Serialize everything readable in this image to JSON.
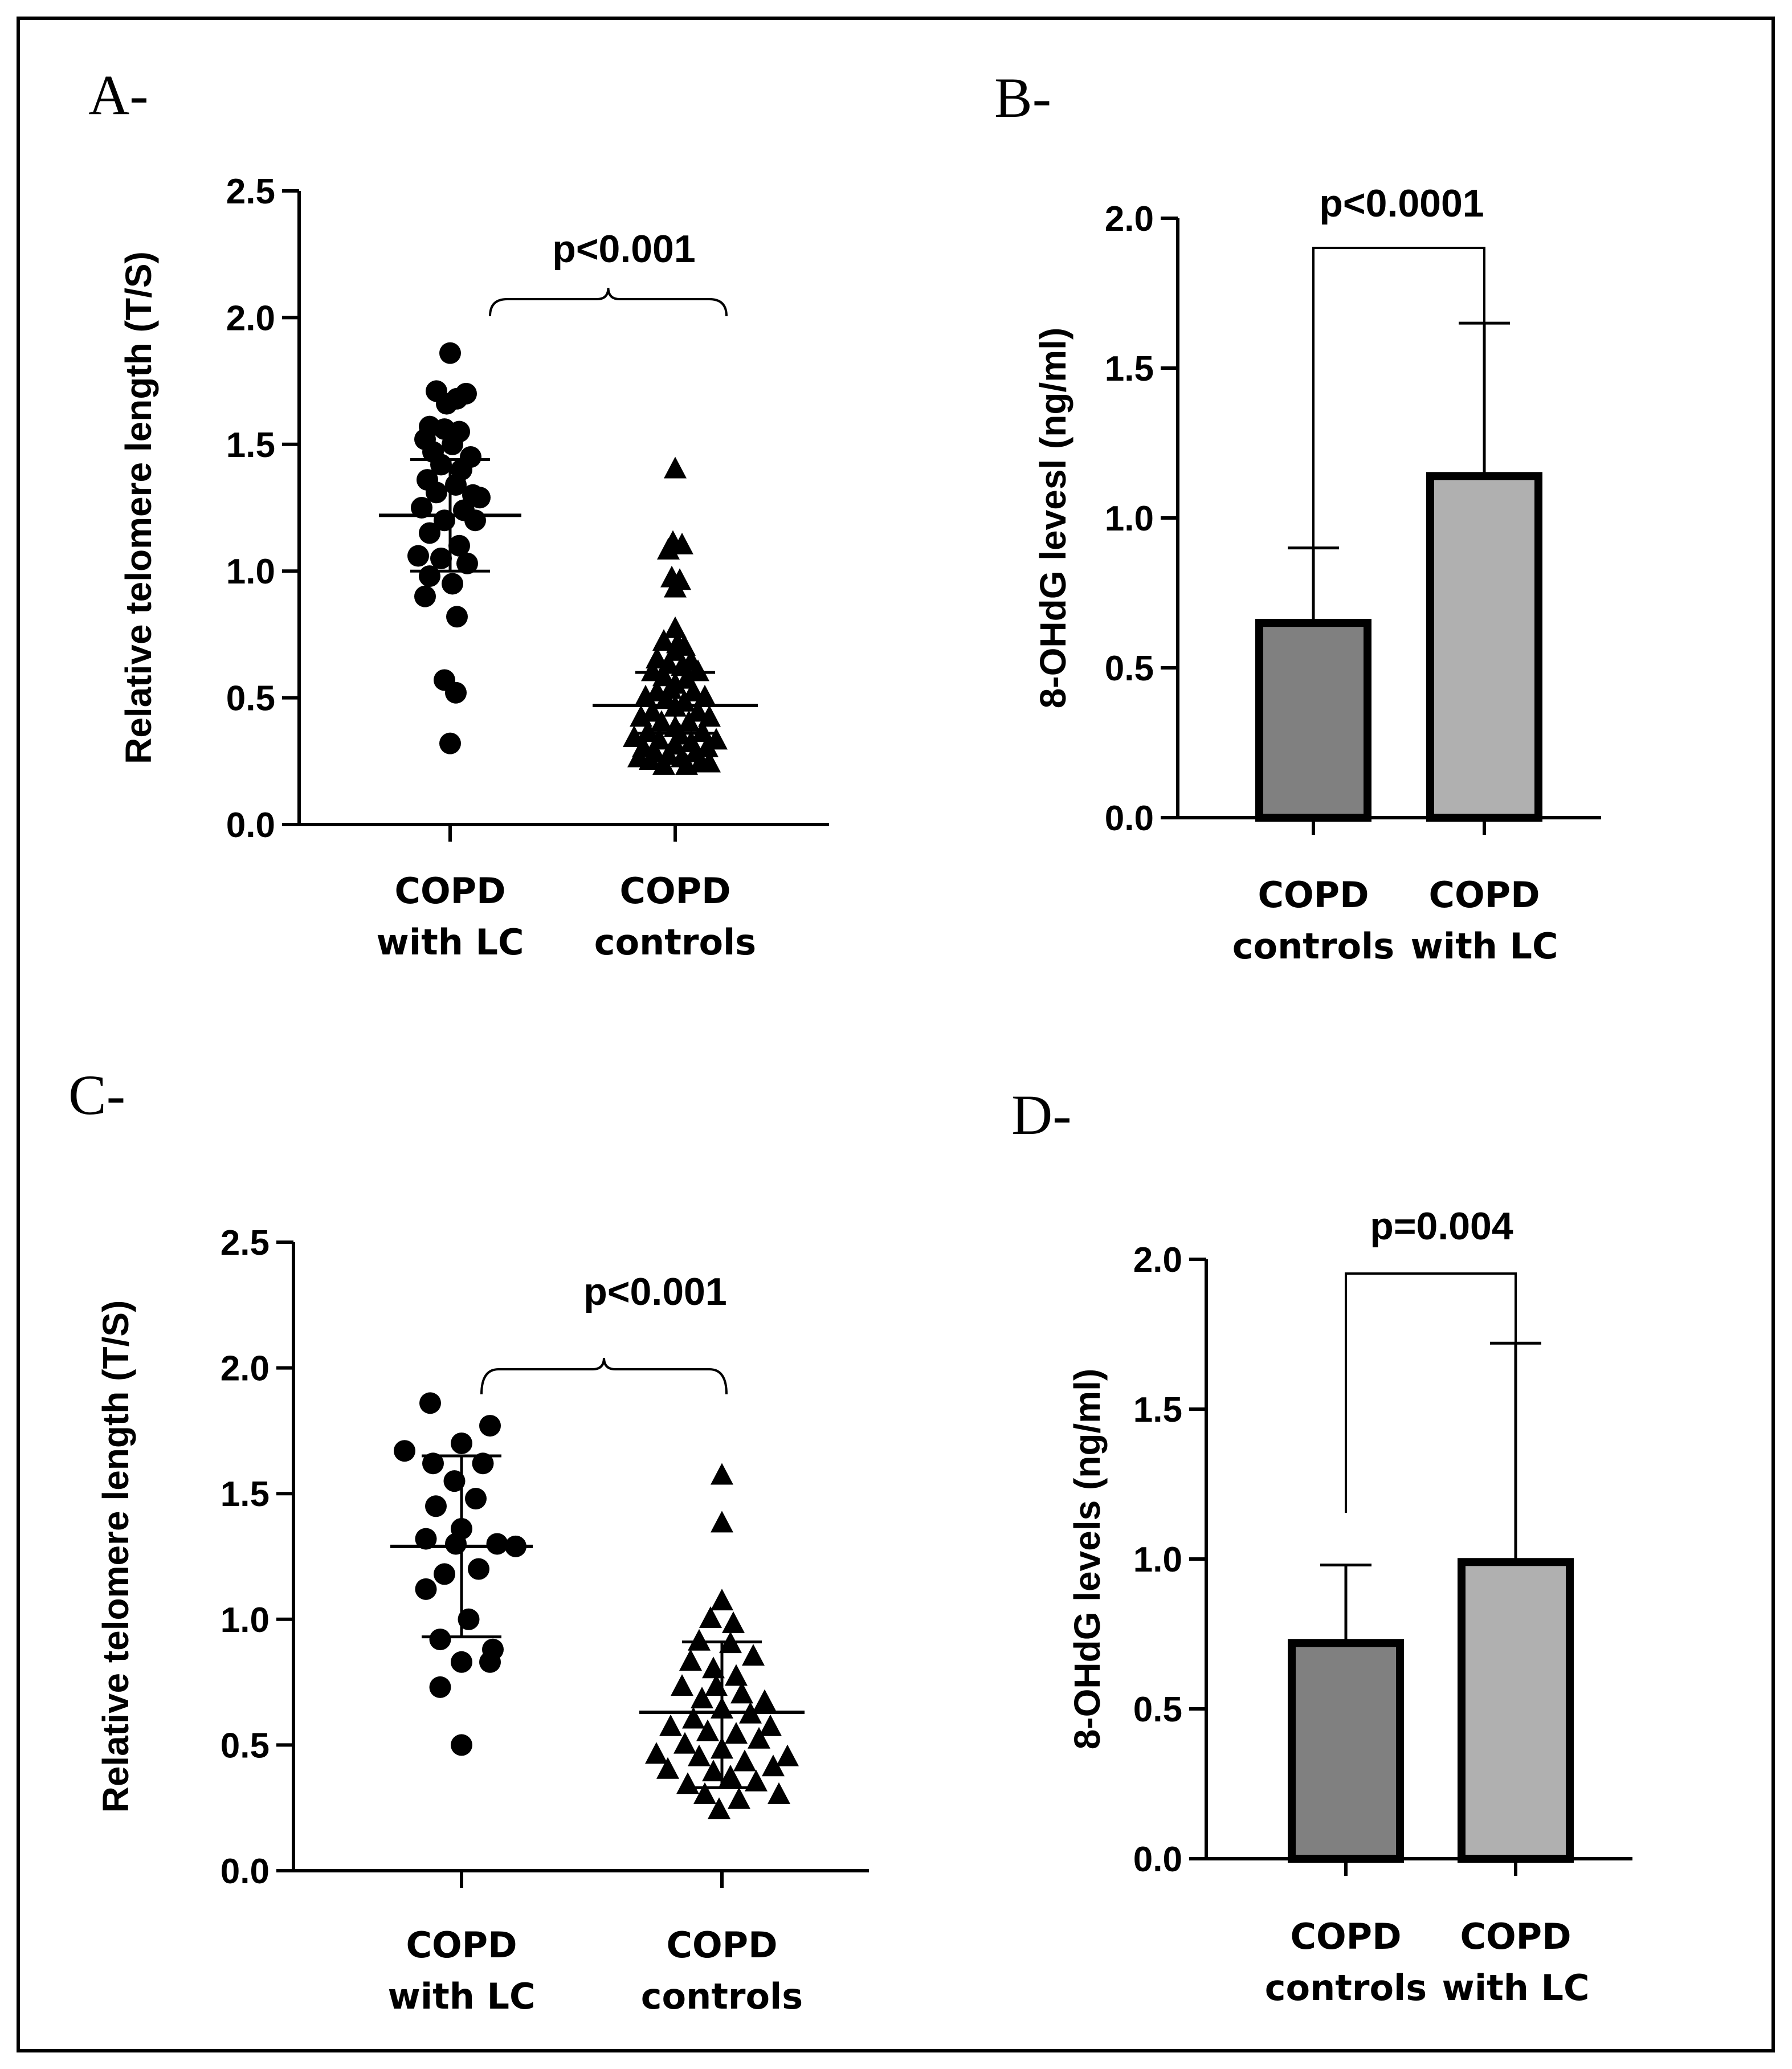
{
  "figure": {
    "border_color": "#000000",
    "point_color": "#000000",
    "bar_colors": {
      "controls": "#808080",
      "with_lc": "#b0b0b0"
    }
  },
  "chart_data": [
    {
      "panel": "A-",
      "type": "scatter",
      "ylabel": "Relative telomere length (T/S)",
      "ylim": [
        0,
        2.5
      ],
      "yticks": [
        "0.0",
        "0.5",
        "1.0",
        "1.5",
        "2.0",
        "2.5"
      ],
      "categories": [
        [
          "COPD",
          "with LC"
        ],
        [
          "COPD",
          "controls"
        ]
      ],
      "annotation": "p<0.001",
      "series": [
        {
          "name": "COPD with LC",
          "marker": "circle",
          "mean": 1.22,
          "sd_low": 1.0,
          "sd_high": 1.44,
          "points": [
            [
              0.0,
              1.86
            ],
            [
              -0.12,
              1.71
            ],
            [
              0.06,
              1.68
            ],
            [
              0.14,
              1.7
            ],
            [
              -0.03,
              1.66
            ],
            [
              -0.18,
              1.57
            ],
            [
              -0.05,
              1.56
            ],
            [
              0.08,
              1.55
            ],
            [
              -0.22,
              1.52
            ],
            [
              0.02,
              1.5
            ],
            [
              -0.15,
              1.47
            ],
            [
              0.18,
              1.45
            ],
            [
              -0.08,
              1.42
            ],
            [
              0.1,
              1.4
            ],
            [
              -0.2,
              1.36
            ],
            [
              0.05,
              1.34
            ],
            [
              -0.12,
              1.31
            ],
            [
              0.2,
              1.3
            ],
            [
              0.26,
              1.29
            ],
            [
              -0.25,
              1.25
            ],
            [
              0.12,
              1.24
            ],
            [
              -0.05,
              1.2
            ],
            [
              0.22,
              1.2
            ],
            [
              -0.18,
              1.15
            ],
            [
              0.08,
              1.1
            ],
            [
              -0.28,
              1.06
            ],
            [
              -0.08,
              1.05
            ],
            [
              0.15,
              1.03
            ],
            [
              -0.18,
              0.98
            ],
            [
              0.02,
              0.95
            ],
            [
              -0.22,
              0.9
            ],
            [
              0.06,
              0.82
            ],
            [
              -0.05,
              0.57
            ],
            [
              0.05,
              0.52
            ],
            [
              0.0,
              0.32
            ]
          ]
        },
        {
          "name": "COPD controls",
          "marker": "triangle",
          "mean": 0.47,
          "sd_low": 0.36,
          "sd_high": 0.6,
          "points": [
            [
              0.0,
              1.4
            ],
            [
              -0.02,
              1.11
            ],
            [
              0.06,
              1.1
            ],
            [
              -0.06,
              1.08
            ],
            [
              -0.03,
              0.97
            ],
            [
              0.04,
              0.96
            ],
            [
              0.0,
              0.93
            ],
            [
              0.0,
              0.77
            ],
            [
              -0.1,
              0.72
            ],
            [
              0.08,
              0.7
            ],
            [
              0.0,
              0.68
            ],
            [
              -0.16,
              0.65
            ],
            [
              0.14,
              0.64
            ],
            [
              -0.06,
              0.63
            ],
            [
              0.06,
              0.62
            ],
            [
              -0.2,
              0.6
            ],
            [
              0.2,
              0.6
            ],
            [
              -0.1,
              0.58
            ],
            [
              0.1,
              0.57
            ],
            [
              0.0,
              0.55
            ],
            [
              -0.16,
              0.52
            ],
            [
              0.16,
              0.52
            ],
            [
              -0.26,
              0.5
            ],
            [
              0.26,
              0.5
            ],
            [
              -0.08,
              0.49
            ],
            [
              0.08,
              0.48
            ],
            [
              0.0,
              0.46
            ],
            [
              -0.2,
              0.44
            ],
            [
              0.2,
              0.44
            ],
            [
              -0.3,
              0.42
            ],
            [
              0.3,
              0.42
            ],
            [
              -0.12,
              0.4
            ],
            [
              0.12,
              0.4
            ],
            [
              0.0,
              0.38
            ],
            [
              -0.24,
              0.36
            ],
            [
              0.24,
              0.36
            ],
            [
              -0.36,
              0.34
            ],
            [
              0.36,
              0.33
            ],
            [
              -0.14,
              0.33
            ],
            [
              0.14,
              0.32
            ],
            [
              0.0,
              0.31
            ],
            [
              -0.28,
              0.3
            ],
            [
              0.28,
              0.3
            ],
            [
              -0.18,
              0.28
            ],
            [
              0.18,
              0.28
            ],
            [
              -0.06,
              0.27
            ],
            [
              0.06,
              0.26
            ],
            [
              -0.22,
              0.25
            ],
            [
              0.22,
              0.24
            ],
            [
              -0.1,
              0.23
            ],
            [
              0.1,
              0.23
            ],
            [
              0.3,
              0.24
            ],
            [
              -0.32,
              0.26
            ],
            [
              0.02,
              0.71
            ],
            [
              -0.04,
              0.53
            ],
            [
              0.04,
              0.35
            ]
          ]
        }
      ]
    },
    {
      "panel": "B-",
      "type": "bar",
      "ylabel": "8-OHdG levesl (ng/ml)",
      "ylim": [
        0,
        2.0
      ],
      "yticks": [
        "0.0",
        "0.5",
        "1.0",
        "1.5",
        "2.0"
      ],
      "categories": [
        [
          "COPD",
          "controls"
        ],
        [
          "COPD",
          "with LC"
        ]
      ],
      "values": [
        0.65,
        1.14
      ],
      "error_upper": [
        0.9,
        1.65
      ],
      "annotation": "p<0.0001"
    },
    {
      "panel": "C-",
      "type": "scatter",
      "ylabel": "Relative telomere length (T/S)",
      "ylim": [
        0,
        2.5
      ],
      "yticks": [
        "0.0",
        "0.5",
        "1.0",
        "1.5",
        "2.0",
        "2.5"
      ],
      "categories": [
        [
          "COPD",
          "with LC"
        ],
        [
          "COPD",
          "controls"
        ]
      ],
      "annotation": "p<0.001",
      "series": [
        {
          "name": "COPD with LC",
          "marker": "circle",
          "mean": 1.29,
          "sd_low": 0.93,
          "sd_high": 1.65,
          "points": [
            [
              -0.22,
              1.86
            ],
            [
              -0.4,
              1.67
            ],
            [
              0.0,
              1.7
            ],
            [
              0.2,
              1.77
            ],
            [
              -0.2,
              1.62
            ],
            [
              0.15,
              1.62
            ],
            [
              -0.05,
              1.55
            ],
            [
              0.1,
              1.48
            ],
            [
              -0.18,
              1.45
            ],
            [
              0.0,
              1.36
            ],
            [
              -0.25,
              1.32
            ],
            [
              -0.04,
              1.3
            ],
            [
              0.25,
              1.3
            ],
            [
              0.38,
              1.29
            ],
            [
              0.12,
              1.2
            ],
            [
              -0.12,
              1.18
            ],
            [
              -0.25,
              1.12
            ],
            [
              0.05,
              1.0
            ],
            [
              -0.15,
              0.92
            ],
            [
              0.22,
              0.88
            ],
            [
              0.2,
              0.83
            ],
            [
              0.0,
              0.83
            ],
            [
              -0.15,
              0.73
            ],
            [
              0.0,
              0.5
            ]
          ]
        },
        {
          "name": "COPD controls",
          "marker": "triangle",
          "mean": 0.63,
          "sd_low": 0.33,
          "sd_high": 0.91,
          "points": [
            [
              0.0,
              1.57
            ],
            [
              0.0,
              1.38
            ],
            [
              0.0,
              1.07
            ],
            [
              -0.08,
              1.0
            ],
            [
              0.08,
              0.98
            ],
            [
              -0.16,
              0.91
            ],
            [
              0.06,
              0.9
            ],
            [
              0.22,
              0.85
            ],
            [
              -0.22,
              0.83
            ],
            [
              -0.06,
              0.8
            ],
            [
              0.1,
              0.77
            ],
            [
              -0.28,
              0.73
            ],
            [
              -0.04,
              0.73
            ],
            [
              0.14,
              0.7
            ],
            [
              -0.14,
              0.68
            ],
            [
              0.3,
              0.67
            ],
            [
              0.0,
              0.64
            ],
            [
              0.2,
              0.62
            ],
            [
              -0.2,
              0.6
            ],
            [
              -0.36,
              0.57
            ],
            [
              0.34,
              0.57
            ],
            [
              -0.1,
              0.55
            ],
            [
              0.1,
              0.54
            ],
            [
              0.26,
              0.52
            ],
            [
              -0.26,
              0.5
            ],
            [
              -0.46,
              0.46
            ],
            [
              0.46,
              0.45
            ],
            [
              0.0,
              0.48
            ],
            [
              -0.16,
              0.45
            ],
            [
              0.16,
              0.43
            ],
            [
              -0.38,
              0.4
            ],
            [
              0.36,
              0.41
            ],
            [
              -0.06,
              0.39
            ],
            [
              0.06,
              0.37
            ],
            [
              0.24,
              0.35
            ],
            [
              -0.24,
              0.34
            ],
            [
              -0.12,
              0.3
            ],
            [
              0.12,
              0.28
            ],
            [
              -0.02,
              0.24
            ],
            [
              0.4,
              0.3
            ]
          ]
        }
      ]
    },
    {
      "panel": "D-",
      "type": "bar",
      "ylabel": "8-OHdG levels (ng/ml)",
      "ylim": [
        0,
        2.0
      ],
      "yticks": [
        "0.0",
        "0.5",
        "1.0",
        "1.5",
        "2.0"
      ],
      "categories": [
        [
          "COPD",
          "controls"
        ],
        [
          "COPD",
          "with LC"
        ]
      ],
      "values": [
        0.72,
        0.99
      ],
      "error_upper": [
        0.98,
        1.72
      ],
      "annotation": "p=0.004"
    }
  ]
}
